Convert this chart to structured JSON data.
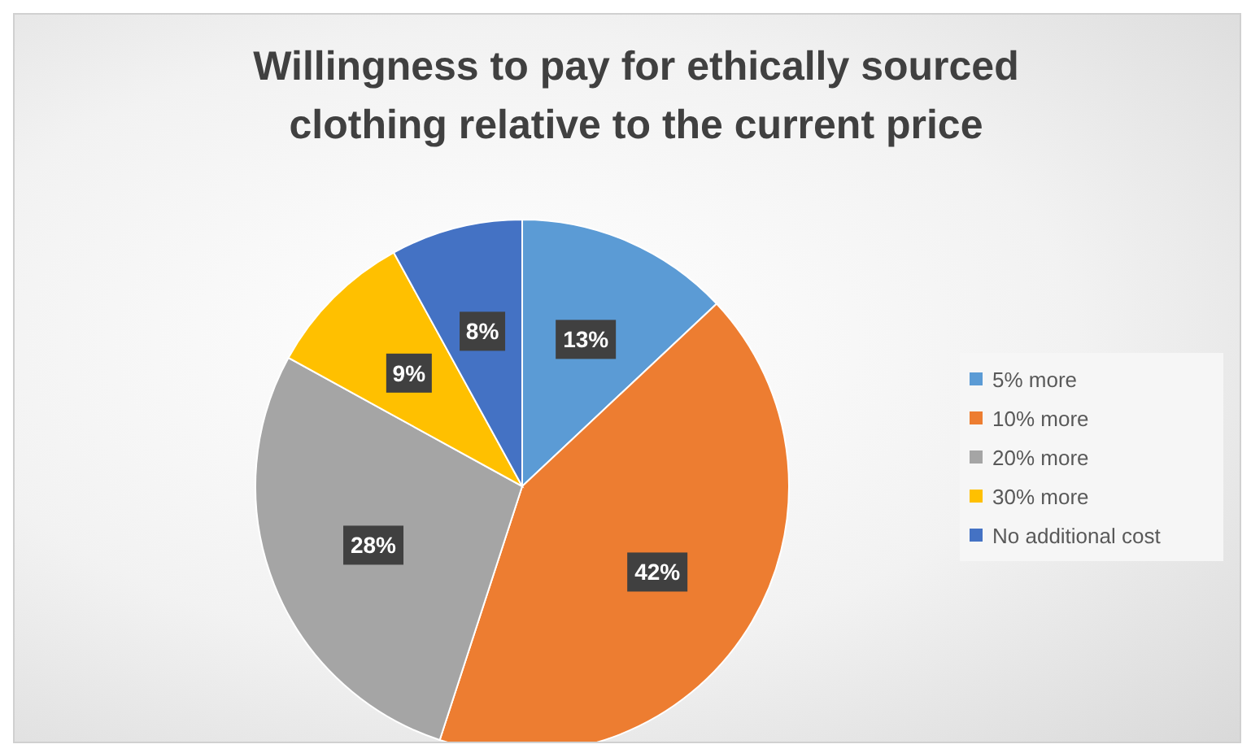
{
  "chart_data": {
    "type": "pie",
    "title": "Willingness to pay for ethically sourced clothing relative to the current price",
    "categories": [
      "5% more",
      "10% more",
      "20% more",
      "30% more",
      "No additional cost"
    ],
    "values": [
      13,
      42,
      28,
      9,
      8
    ],
    "colors": [
      "#5b9bd5",
      "#ed7d31",
      "#a5a5a5",
      "#ffc000",
      "#4472c4"
    ],
    "value_labels": [
      "13%",
      "42%",
      "28%",
      "9%",
      "8%"
    ],
    "legend": "right"
  }
}
